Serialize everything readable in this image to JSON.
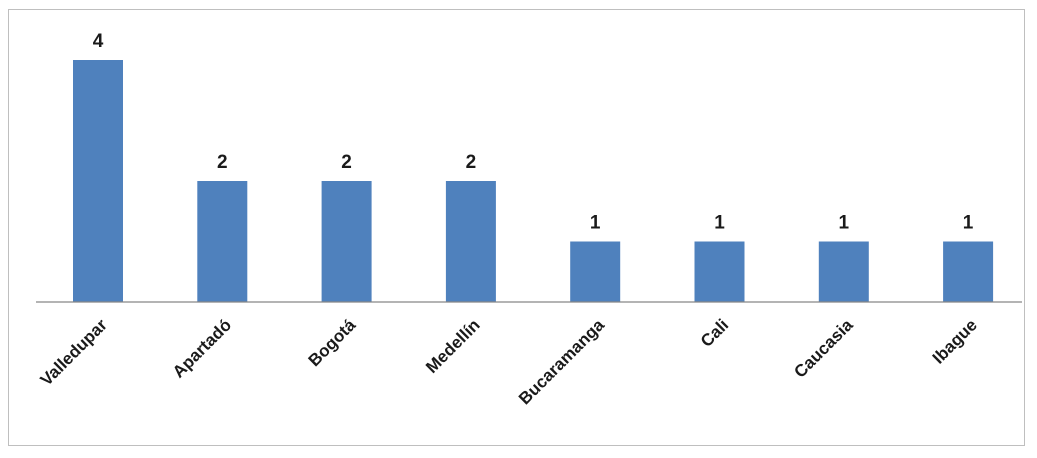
{
  "chart_data": {
    "type": "bar",
    "categories": [
      "Valledupar",
      "Apartadó",
      "Bogotá",
      "Medellín",
      "Bucaramanga",
      "Cali",
      "Caucasia",
      "Ibague"
    ],
    "values": [
      4,
      2,
      2,
      2,
      1,
      1,
      1,
      1
    ],
    "title": "",
    "xlabel": "",
    "ylabel": "",
    "ylim": [
      0,
      4
    ],
    "grid": false,
    "legend": "none",
    "data_labels": true,
    "bar_color": "#4f81bd",
    "axis_color": "#868686"
  }
}
